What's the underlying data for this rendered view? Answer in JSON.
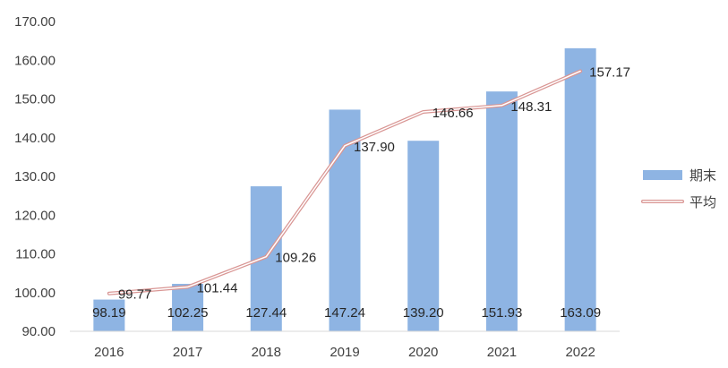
{
  "chart_data": {
    "type": "bar",
    "categories": [
      "2016",
      "2017",
      "2018",
      "2019",
      "2020",
      "2021",
      "2022"
    ],
    "series": [
      {
        "name": "期末",
        "type": "bar",
        "color": "#8EB4E3",
        "values": [
          98.19,
          102.25,
          127.44,
          147.24,
          139.2,
          151.93,
          163.09
        ],
        "labels": [
          "98.19",
          "102.25",
          "127.44",
          "147.24",
          "139.20",
          "151.93",
          "163.09"
        ]
      },
      {
        "name": "平均",
        "type": "line",
        "color": "#D99694",
        "values": [
          99.77,
          101.44,
          109.26,
          137.9,
          146.66,
          148.31,
          157.17
        ],
        "labels": [
          "99.77",
          "101.44",
          "109.26",
          "137.90",
          "146.66",
          "148.31",
          "157.17"
        ]
      }
    ],
    "ylim": [
      90,
      170
    ],
    "yticks": [
      "90.00",
      "100.00",
      "110.00",
      "120.00",
      "130.00",
      "140.00",
      "150.00",
      "160.00",
      "170.00"
    ],
    "grid": false,
    "legend_position": "right"
  }
}
